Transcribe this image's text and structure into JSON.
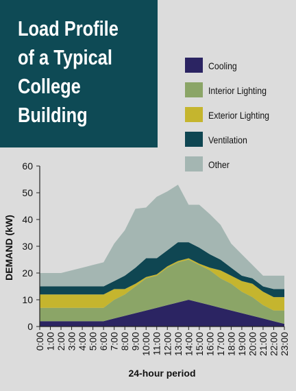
{
  "title": {
    "lines": [
      "Load Profile",
      "of a Typical",
      "College",
      "Building"
    ]
  },
  "colors": {
    "background": "#dcdcdc",
    "title_bg": "#0e4a55",
    "cooling": "#2b2462",
    "interior_lighting": "#8ba567",
    "exterior_lighting": "#c5b52e",
    "ventilation": "#0f4652",
    "other": "#a4b6b2"
  },
  "chart_data": {
    "type": "area",
    "stacked": true,
    "title": "Load Profile of a Typical College Building",
    "xlabel": "24-hour period",
    "ylabel": "DEMAND (kW)",
    "ylim": [
      0,
      60
    ],
    "yticks": [
      0,
      10,
      20,
      30,
      40,
      50,
      60
    ],
    "grid": false,
    "legend_position": "right",
    "x": [
      "0:00",
      "1:00",
      "2:00",
      "3:00",
      "4:00",
      "5:00",
      "6:00",
      "7:00",
      "8:00",
      "9:00",
      "10:00",
      "11:00",
      "12:00",
      "13:00",
      "14:00",
      "15:00",
      "16:00",
      "17:00",
      "18:00",
      "19:00",
      "20:00",
      "21:00",
      "22:00",
      "23:00"
    ],
    "series": [
      {
        "name": "Cooling",
        "color": "#2b2462",
        "values": [
          2,
          2,
          2,
          2,
          2,
          2,
          2,
          3,
          4,
          5,
          6,
          7,
          8,
          9,
          10,
          9,
          8,
          7,
          6,
          5,
          4,
          3,
          2,
          1
        ]
      },
      {
        "name": "Interior Lighting",
        "color": "#8ba567",
        "values": [
          5,
          5,
          5,
          5,
          5,
          5,
          5,
          7,
          8,
          10,
          12,
          12,
          14,
          15,
          15,
          14,
          13,
          11,
          10,
          8,
          7,
          5,
          4,
          5
        ]
      },
      {
        "name": "Exterior Lighting",
        "color": "#c5b52e",
        "values": [
          5,
          5,
          5,
          5,
          5,
          5,
          5,
          4,
          2,
          1,
          0.5,
          0.5,
          0.5,
          0.5,
          0.5,
          0.5,
          1,
          3,
          3,
          4,
          5,
          5,
          5,
          5
        ]
      },
      {
        "name": "Ventilation",
        "color": "#0f4652",
        "values": [
          3,
          3,
          3,
          3,
          3,
          3,
          3,
          3,
          5,
          6,
          7,
          6,
          6,
          7,
          6,
          6,
          5,
          4,
          3,
          2,
          2,
          2,
          3,
          3
        ]
      },
      {
        "name": "Other",
        "color": "#a4b6b2",
        "values": [
          5,
          5,
          5,
          6,
          7,
          8,
          9,
          14,
          17,
          22,
          19,
          23,
          22,
          21.5,
          14,
          16,
          15,
          13,
          9,
          8,
          5,
          4,
          5,
          5
        ]
      }
    ]
  }
}
